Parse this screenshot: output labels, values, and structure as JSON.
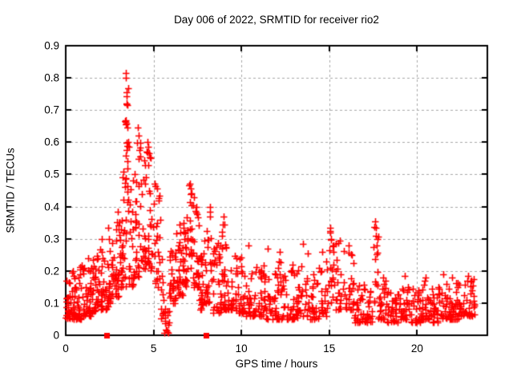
{
  "window": {
    "background": "#ffffff"
  },
  "chart_data": {
    "type": "scatter",
    "title": "Day 006 of 2022, SRMTID for receiver rio2",
    "xlabel": "GPS time / hours",
    "ylabel": "SRMTID / TECUs",
    "xlim": [
      0,
      24
    ],
    "ylim": [
      0,
      0.9
    ],
    "xtick_values": [
      0,
      5,
      10,
      15,
      20
    ],
    "xtick_labels": [
      "0",
      "5",
      "10",
      "15",
      "20"
    ],
    "ytick_values": [
      0,
      0.1,
      0.2,
      0.3,
      0.4,
      0.5,
      0.6,
      0.7,
      0.8,
      0.9
    ],
    "ytick_labels": [
      "0",
      "0.1",
      "0.2",
      "0.3",
      "0.4",
      "0.5",
      "0.6",
      "0.7",
      "0.8",
      "0.9"
    ],
    "grid": true,
    "grid_style": "dashed",
    "legend": "none",
    "marker": "plus",
    "marker_color": "#ff0000",
    "grid_color": "#a8a8a8",
    "border_color": "#000000",
    "background": "#ffffff",
    "seed": 1136,
    "density_bins_format": "[t_start_hours, t_end_hours, n_points, y_min_TECU, y_max_TECU, bias_exponent(higher=bottom-heavy)]",
    "series": [
      {
        "name": "srmtid",
        "marker": "plus",
        "color": "#ff0000",
        "density_bins": [
          [
            0.0,
            0.5,
            40,
            0.05,
            0.2,
            2.5
          ],
          [
            0.5,
            1.0,
            36,
            0.05,
            0.22,
            2.2
          ],
          [
            1.0,
            1.5,
            36,
            0.06,
            0.25,
            2.0
          ],
          [
            1.5,
            2.0,
            36,
            0.07,
            0.27,
            2.0
          ],
          [
            2.0,
            2.4,
            30,
            0.08,
            0.33,
            2.0
          ],
          [
            2.4,
            2.8,
            30,
            0.1,
            0.3,
            1.8
          ],
          [
            2.8,
            3.2,
            34,
            0.12,
            0.4,
            1.8
          ],
          [
            3.2,
            3.45,
            24,
            0.15,
            0.68,
            1.3
          ],
          [
            3.4,
            3.6,
            16,
            0.28,
            0.78,
            1.0
          ],
          [
            3.6,
            3.9,
            24,
            0.15,
            0.52,
            1.5
          ],
          [
            3.9,
            4.2,
            24,
            0.18,
            0.64,
            1.5
          ],
          [
            4.2,
            4.6,
            26,
            0.2,
            0.6,
            1.4
          ],
          [
            4.6,
            5.0,
            28,
            0.2,
            0.62,
            1.5
          ],
          [
            5.0,
            5.4,
            22,
            0.15,
            0.47,
            1.5
          ],
          [
            5.4,
            5.65,
            12,
            0.05,
            0.28,
            1.5
          ],
          [
            5.6,
            5.9,
            18,
            0.005,
            0.1,
            1.5
          ],
          [
            5.9,
            6.3,
            30,
            0.1,
            0.28,
            1.7
          ],
          [
            6.3,
            6.7,
            30,
            0.12,
            0.33,
            1.7
          ],
          [
            6.7,
            7.0,
            26,
            0.15,
            0.38,
            1.5
          ],
          [
            7.0,
            7.25,
            18,
            0.2,
            0.47,
            1.2
          ],
          [
            7.25,
            7.6,
            26,
            0.15,
            0.42,
            1.5
          ],
          [
            7.6,
            8.0,
            30,
            0.08,
            0.33,
            1.8
          ],
          [
            8.0,
            8.35,
            20,
            0.1,
            0.4,
            1.6
          ],
          [
            8.35,
            8.8,
            30,
            0.07,
            0.3,
            1.8
          ],
          [
            8.8,
            9.2,
            26,
            0.08,
            0.37,
            1.8
          ],
          [
            9.2,
            9.7,
            26,
            0.08,
            0.25,
            2.0
          ],
          [
            9.7,
            10.2,
            28,
            0.07,
            0.25,
            2.0
          ],
          [
            10.2,
            10.8,
            30,
            0.06,
            0.2,
            2.0
          ],
          [
            10.8,
            11.4,
            30,
            0.06,
            0.22,
            2.0
          ],
          [
            11.4,
            12.0,
            30,
            0.05,
            0.26,
            2.2
          ],
          [
            12.0,
            12.6,
            30,
            0.05,
            0.24,
            2.2
          ],
          [
            12.6,
            13.2,
            30,
            0.05,
            0.22,
            2.2
          ],
          [
            13.2,
            13.8,
            30,
            0.06,
            0.28,
            2.2
          ],
          [
            13.8,
            14.4,
            28,
            0.05,
            0.22,
            2.2
          ],
          [
            14.4,
            14.9,
            24,
            0.06,
            0.25,
            2.0
          ],
          [
            14.9,
            15.25,
            18,
            0.1,
            0.34,
            1.3
          ],
          [
            15.25,
            15.8,
            22,
            0.08,
            0.3,
            1.8
          ],
          [
            15.8,
            16.4,
            28,
            0.08,
            0.28,
            1.8
          ],
          [
            16.4,
            17.0,
            28,
            0.04,
            0.16,
            2.0
          ],
          [
            17.0,
            17.5,
            24,
            0.04,
            0.15,
            2.0
          ],
          [
            17.5,
            17.8,
            14,
            0.1,
            0.36,
            1.1
          ],
          [
            17.8,
            18.3,
            26,
            0.05,
            0.18,
            2.0
          ],
          [
            18.3,
            19.0,
            34,
            0.04,
            0.14,
            2.2
          ],
          [
            19.0,
            19.6,
            30,
            0.05,
            0.17,
            2.2
          ],
          [
            19.6,
            20.2,
            30,
            0.04,
            0.15,
            2.2
          ],
          [
            20.2,
            20.8,
            30,
            0.05,
            0.17,
            2.2
          ],
          [
            20.8,
            21.4,
            30,
            0.04,
            0.16,
            2.2
          ],
          [
            21.4,
            22.0,
            30,
            0.05,
            0.18,
            2.2
          ],
          [
            22.0,
            22.6,
            30,
            0.05,
            0.17,
            2.2
          ],
          [
            22.6,
            23.3,
            34,
            0.06,
            0.18,
            2.0
          ]
        ],
        "notable_points": [
          [
            0.35,
            0.195
          ],
          [
            1.3,
            0.24
          ],
          [
            2.05,
            0.3
          ],
          [
            2.4,
            0.335
          ],
          [
            3.0,
            0.33
          ],
          [
            3.42,
            0.815
          ],
          [
            3.42,
            0.8
          ],
          [
            3.45,
            0.755
          ],
          [
            3.47,
            0.72
          ],
          [
            3.5,
            0.715
          ],
          [
            3.38,
            0.665
          ],
          [
            3.43,
            0.655
          ],
          [
            3.5,
            0.645
          ],
          [
            3.55,
            0.6
          ],
          [
            3.6,
            0.585
          ],
          [
            4.12,
            0.645
          ],
          [
            4.15,
            0.62
          ],
          [
            4.2,
            0.575
          ],
          [
            4.55,
            0.49
          ],
          [
            4.65,
            0.6
          ],
          [
            4.7,
            0.585
          ],
          [
            4.75,
            0.565
          ],
          [
            5.05,
            0.47
          ],
          [
            5.2,
            0.455
          ],
          [
            5.3,
            0.42
          ],
          [
            6.5,
            0.345
          ],
          [
            7.08,
            0.47
          ],
          [
            7.1,
            0.455
          ],
          [
            7.12,
            0.44
          ],
          [
            7.3,
            0.43
          ],
          [
            7.45,
            0.4
          ],
          [
            8.2,
            0.4
          ],
          [
            8.22,
            0.385
          ],
          [
            9.0,
            0.37
          ],
          [
            9.02,
            0.345
          ],
          [
            10.4,
            0.28
          ],
          [
            11.5,
            0.27
          ],
          [
            12.2,
            0.26
          ],
          [
            13.5,
            0.285
          ],
          [
            14.6,
            0.26
          ],
          [
            15.05,
            0.335
          ],
          [
            15.07,
            0.32
          ],
          [
            15.1,
            0.3
          ],
          [
            15.6,
            0.295
          ],
          [
            16.1,
            0.28
          ],
          [
            17.62,
            0.355
          ],
          [
            17.65,
            0.335
          ],
          [
            17.68,
            0.31
          ],
          [
            17.7,
            0.28
          ],
          [
            19.3,
            0.185
          ],
          [
            20.5,
            0.18
          ],
          [
            21.5,
            0.19
          ],
          [
            22.0,
            0.18
          ],
          [
            22.9,
            0.185
          ],
          [
            23.1,
            0.17
          ]
        ]
      },
      {
        "name": "zero-flags",
        "marker": "filled-square",
        "color": "#ff0000",
        "points": [
          [
            2.33,
            0
          ],
          [
            7.99,
            0
          ]
        ]
      }
    ]
  }
}
